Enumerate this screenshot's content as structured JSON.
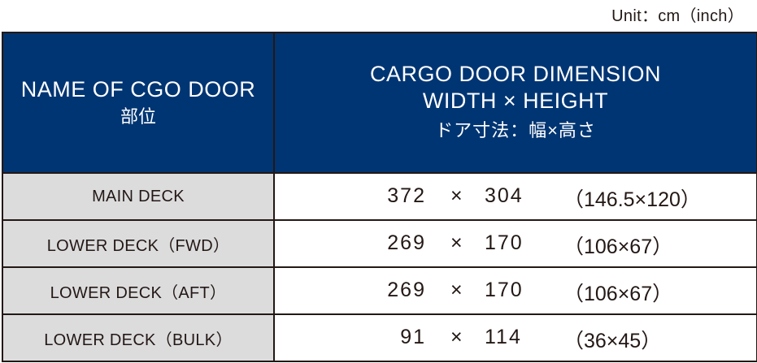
{
  "unit_label": "Unit：cm（inch）",
  "header": {
    "name_en": "NAME OF CGO DOOR",
    "name_ja": "部位",
    "dim_line1": "CARGO DOOR DIMENSION",
    "dim_line2": "WIDTH × HEIGHT",
    "dim_ja": "ドア寸法：幅×高さ"
  },
  "rows": [
    {
      "name": "MAIN DECK",
      "width": "372",
      "times": "×",
      "height": "304",
      "inch": "（146.5×120）"
    },
    {
      "name": "LOWER DECK（FWD）",
      "width": "269",
      "times": "×",
      "height": "170",
      "inch": "（106×67）"
    },
    {
      "name": "LOWER DECK（AFT）",
      "width": "269",
      "times": "×",
      "height": "170",
      "inch": "（106×67）"
    },
    {
      "name": "LOWER DECK（BULK）",
      "width": "91",
      "times": "×",
      "height": "114",
      "inch": "（36×45）"
    }
  ],
  "colors": {
    "header_bg": "#003573",
    "name_cell_bg": "#dcdcdd",
    "border": "#231815"
  }
}
